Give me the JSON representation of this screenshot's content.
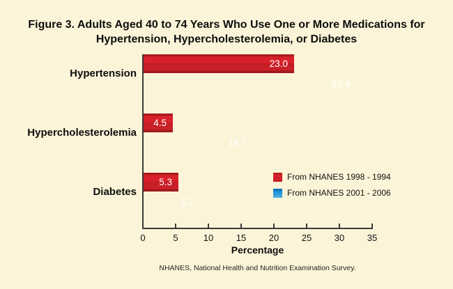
{
  "figure": {
    "title_lines": [
      "Figure 3. Adults Aged 40 to 74 Years Who Use One or More Medications for",
      "Hypertension, Hypercholesterolemia, or Diabetes"
    ],
    "footnote": "NHANES, National Health and Nutrition Examination Survey."
  },
  "colors": {
    "background": "#FCF4D8",
    "series_red": "#D7202A",
    "series_blue": "#1F97D9",
    "axis": "#3A3A38",
    "value_label_text": "#FFFFFF"
  },
  "chart_data": {
    "type": "bar",
    "orientation": "horizontal",
    "title": "Figure 3. Adults Aged 40 to 74 Years Who Use One or More Medications for Hypertension, Hypercholesterolemia, or Diabetes",
    "categories": [
      "Hypertension",
      "Hypercholesterolemia",
      "Diabetes"
    ],
    "series": [
      {
        "name": "From NHANES 1998 - 1994",
        "color_key": "series_red",
        "values": [
          23.0,
          4.5,
          5.3
        ]
      },
      {
        "name": "From NHANES 2001 - 2006",
        "color_key": "series_blue",
        "values": [
          32.4,
          16.7,
          8.7
        ]
      }
    ],
    "xlabel": "Percentage",
    "xlim": [
      0,
      35
    ],
    "xticks": [
      0,
      5,
      10,
      15,
      20,
      25,
      30,
      35
    ],
    "value_labels": true,
    "value_label_format": "one-decimal",
    "legend_position": "right-middle",
    "grid": false,
    "footnote": "NHANES, National Health and Nutrition Examination Survey."
  }
}
